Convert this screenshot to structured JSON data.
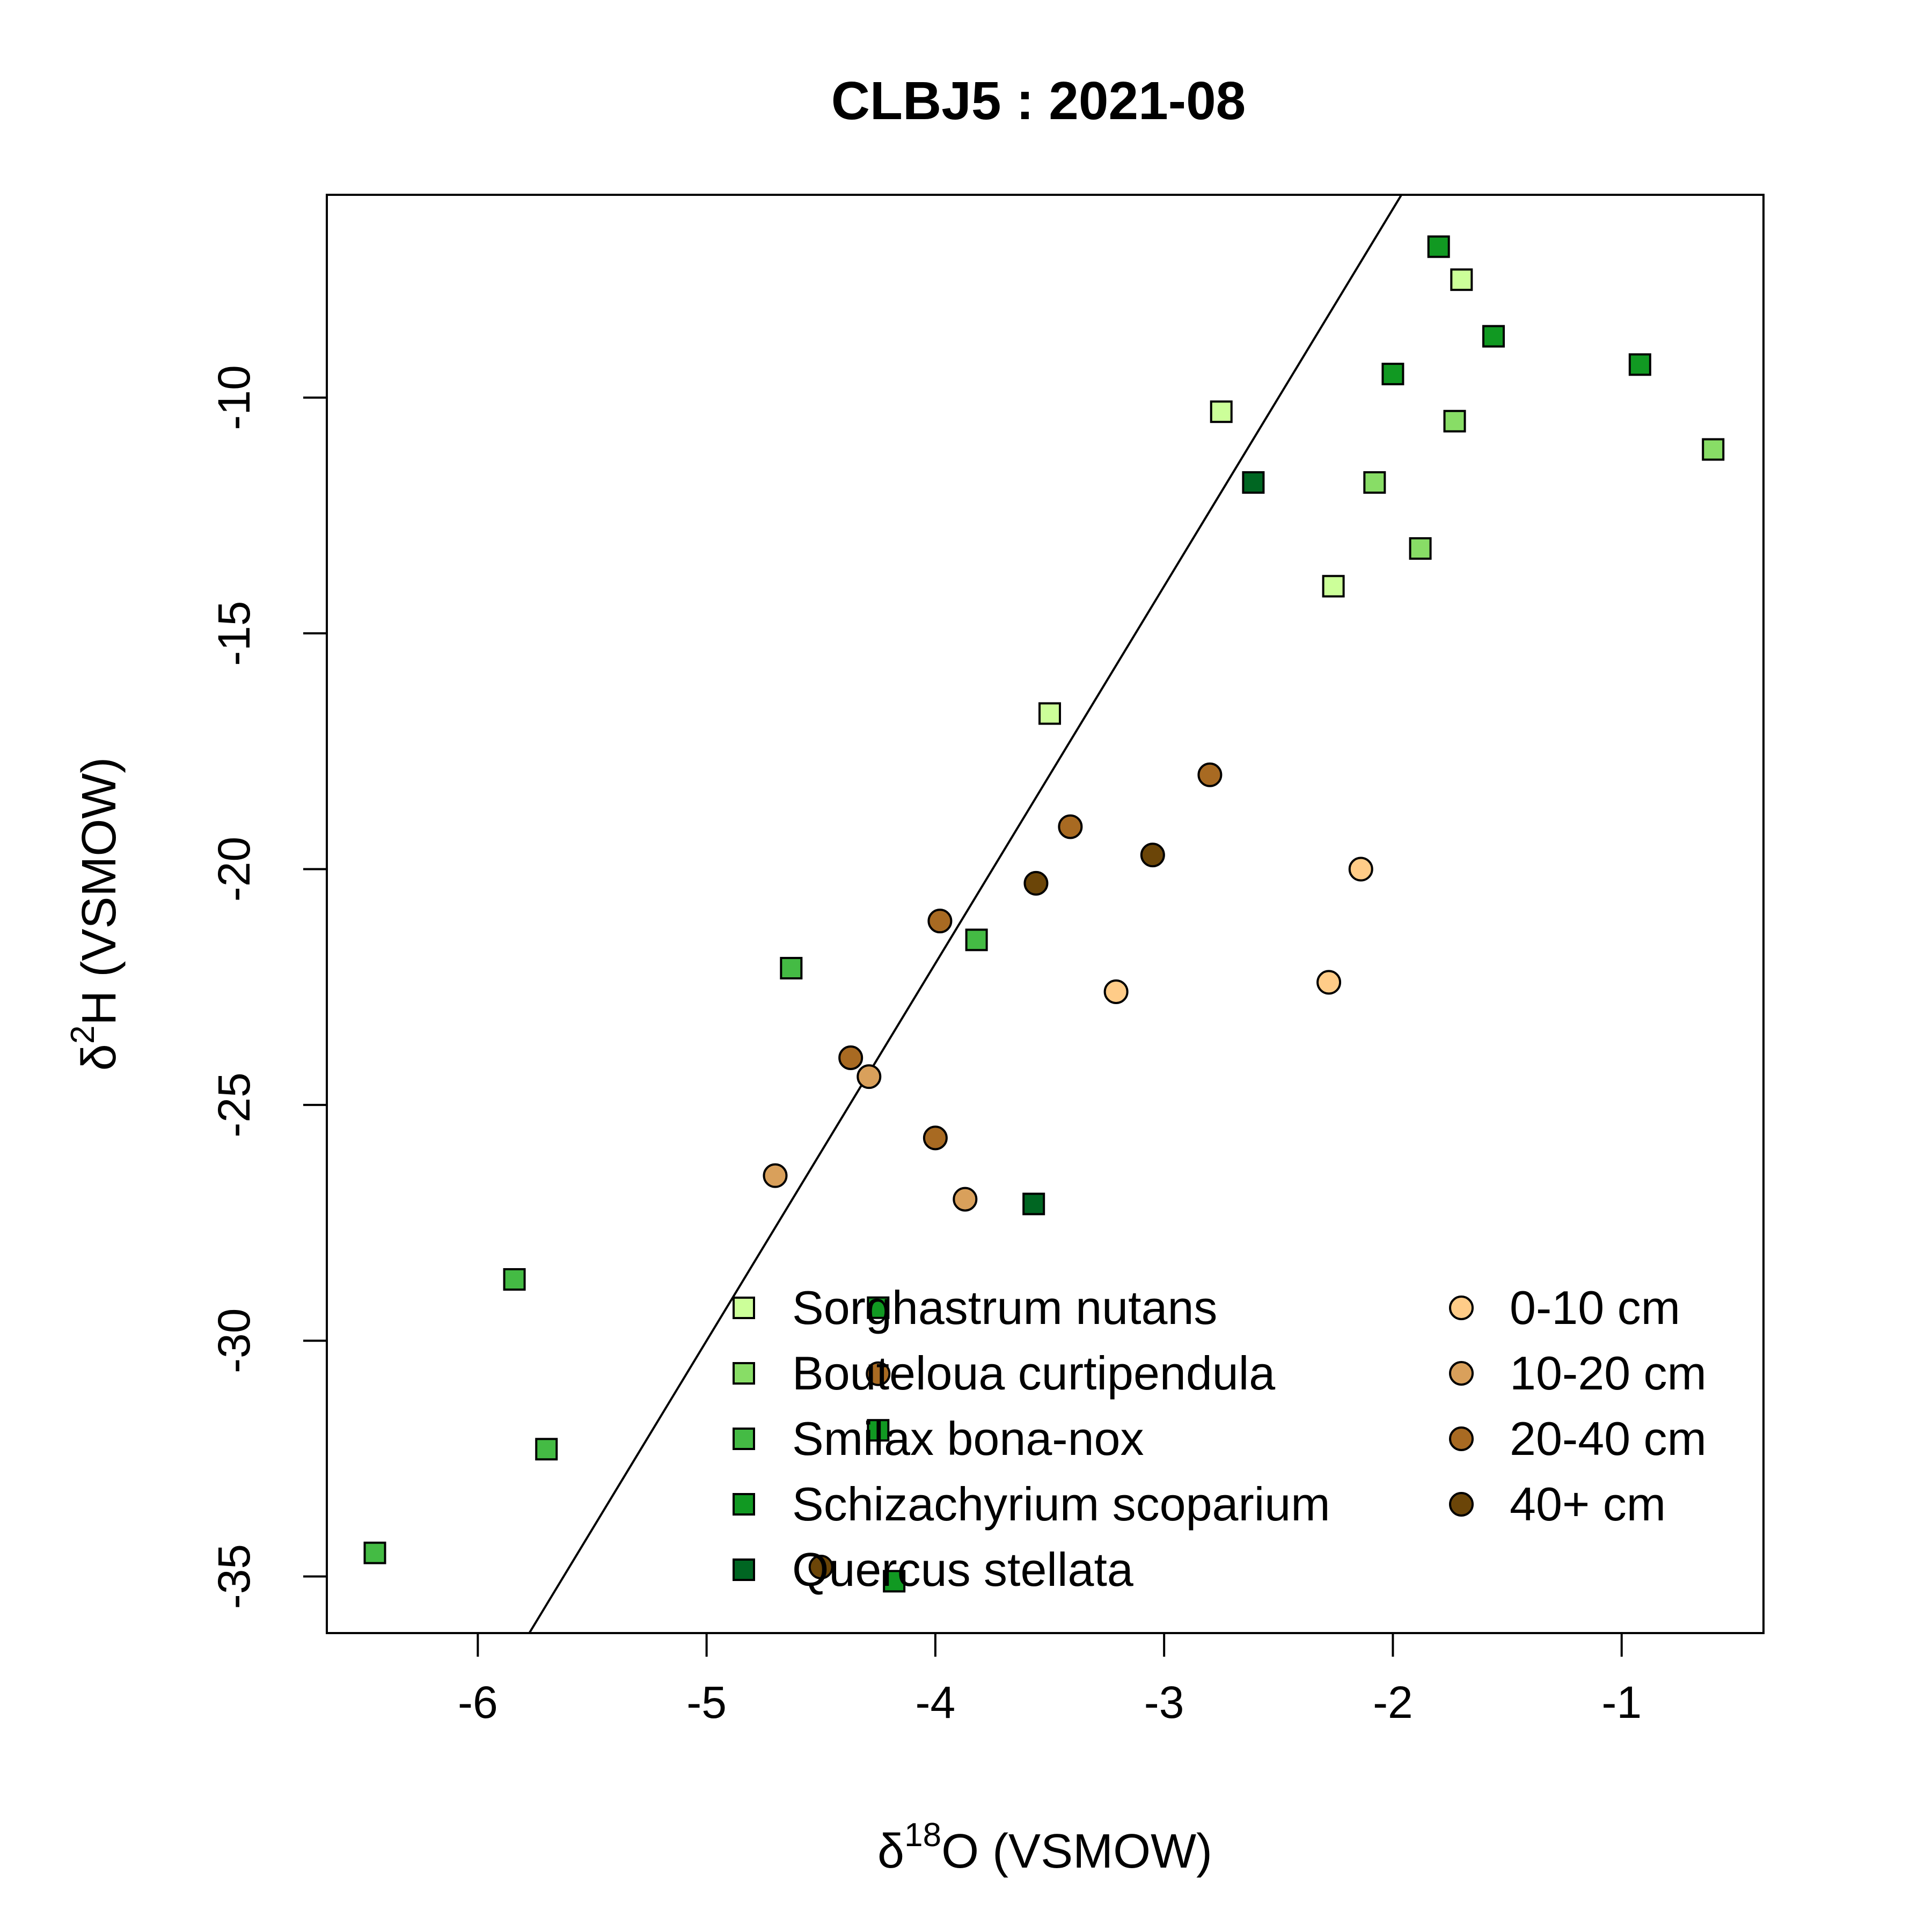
{
  "chart_data": {
    "type": "scatter",
    "title": "CLBJ5 : 2021-08",
    "xlabel": {
      "delta": "δ",
      "sup": "18",
      "rest": "O (VSMOW)"
    },
    "ylabel": {
      "delta": "δ",
      "sup": "2",
      "rest": "H (VSMOW)"
    },
    "xlim": [
      -6.66,
      -0.38
    ],
    "ylim": [
      -36.2,
      -5.7
    ],
    "xticks": [
      -6,
      -5,
      -4,
      -3,
      -2,
      -1
    ],
    "xtick_labels": [
      "-6",
      "-5",
      "-4",
      "-3",
      "-2",
      "-1"
    ],
    "yticks": [
      -35,
      -30,
      -25,
      -20,
      -15,
      -10
    ],
    "ytick_labels": [
      "-35",
      "-30",
      "-25",
      "-20",
      "-15",
      "-10"
    ],
    "grid": false,
    "reference_line": {
      "slope": 8,
      "intercept": 10
    },
    "legend_position": "bottom-right",
    "plant_series": [
      {
        "name": "Sorghastrum nutans",
        "marker": "square",
        "color": "#ccff99",
        "points": [
          [
            -1.7,
            -7.5
          ],
          [
            -2.75,
            -10.3
          ],
          [
            -2.26,
            -14.0
          ],
          [
            -3.5,
            -16.7
          ]
        ]
      },
      {
        "name": "Bouteloua curtipendula",
        "marker": "square",
        "color": "#88dd66",
        "points": [
          [
            -1.73,
            -10.5
          ],
          [
            -0.6,
            -11.1
          ],
          [
            -2.08,
            -11.8
          ],
          [
            -1.88,
            -13.2
          ]
        ]
      },
      {
        "name": "Smilax bona-nox",
        "marker": "square",
        "color": "#44bb44",
        "points": [
          [
            -4.63,
            -22.1
          ],
          [
            -3.82,
            -21.5
          ],
          [
            -5.84,
            -28.7
          ],
          [
            -5.7,
            -32.3
          ],
          [
            -6.45,
            -34.5
          ]
        ]
      },
      {
        "name": "Schizachyrium scoparium",
        "marker": "square",
        "color": "#119922",
        "points": [
          [
            -1.8,
            -6.8
          ],
          [
            -1.56,
            -8.7
          ],
          [
            -2.0,
            -9.5
          ],
          [
            -0.92,
            -9.3
          ],
          [
            -4.25,
            -29.3
          ],
          [
            -4.25,
            -31.9
          ],
          [
            -4.18,
            -35.1
          ]
        ]
      },
      {
        "name": "Quercus stellata",
        "marker": "square",
        "color": "#006622",
        "points": [
          [
            -2.61,
            -11.8
          ],
          [
            -3.57,
            -27.1
          ]
        ]
      }
    ],
    "soil_series": [
      {
        "name": "0-10 cm",
        "marker": "circle",
        "color": "#ffcc88",
        "points": [
          [
            -2.14,
            -20.0
          ],
          [
            -2.28,
            -22.4
          ],
          [
            -3.21,
            -22.6
          ]
        ]
      },
      {
        "name": "10-20 cm",
        "marker": "circle",
        "color": "#d9a05b",
        "points": [
          [
            -4.29,
            -24.4
          ],
          [
            -4.7,
            -26.5
          ],
          [
            -3.87,
            -27.0
          ]
        ]
      },
      {
        "name": "20-40 cm",
        "marker": "circle",
        "color": "#a86a22",
        "points": [
          [
            -2.8,
            -18.0
          ],
          [
            -3.41,
            -19.1
          ],
          [
            -3.98,
            -21.1
          ],
          [
            -4.37,
            -24.0
          ],
          [
            -4.0,
            -25.7
          ],
          [
            -4.25,
            -30.7
          ]
        ]
      },
      {
        "name": "40+ cm",
        "marker": "circle",
        "color": "#6b4508",
        "points": [
          [
            -3.05,
            -19.7
          ],
          [
            -3.56,
            -20.3
          ],
          [
            -4.5,
            -34.8
          ]
        ]
      }
    ]
  }
}
